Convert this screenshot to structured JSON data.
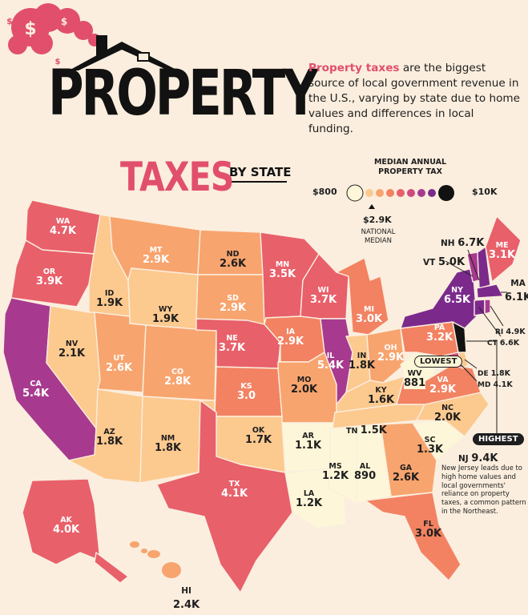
{
  "title": {
    "main": "PROPERTY",
    "sub": "TAXES",
    "by_state": "BY STATE"
  },
  "intro": {
    "highlight": "Property taxes",
    "body": " are the biggest source of local government revenue in the U.S., varying by state due to home values and differences in local funding."
  },
  "legend": {
    "title": "MEDIAN ANNUAL PROPERTY TAX",
    "min_label": "$800",
    "max_label": "$10K",
    "median_value": "$2.9K",
    "median_label": "NATIONAL MEDIAN",
    "colors": [
      "#fdf6d8",
      "#fcc98f",
      "#f8a46e",
      "#f28262",
      "#e8606a",
      "#cf4a7e",
      "#a73a8f",
      "#7b2a8c",
      "#121212"
    ]
  },
  "states": {
    "WA": "4.7K",
    "OR": "3.9K",
    "CA": "5.4K",
    "ID": "1.9K",
    "NV": "2.1K",
    "MT": "2.9K",
    "WY": "1.9K",
    "UT": "2.6K",
    "CO": "2.8K",
    "AZ": "1.8K",
    "NM": "1.8K",
    "ND": "2.6K",
    "SD": "2.9K",
    "NE": "3.7K",
    "KS": "3.0",
    "OK": "1.7K",
    "TX": "4.1K",
    "MN": "3.5K",
    "IA": "2.9K",
    "MO": "2.0K",
    "AR": "1.1K",
    "LA": "1.2K",
    "WI": "3.7K",
    "IL": "5.4K",
    "MI": "3.0K",
    "IN": "1.8K",
    "OH": "2.9K",
    "KY": "1.6K",
    "TN": "1.5K",
    "MS": "1.2K",
    "AL": "890",
    "GA": "2.6K",
    "FL": "3.0K",
    "SC": "1.3K",
    "NC": "2.0K",
    "VA": "2.9K",
    "WV": "881",
    "PA": "3.2K",
    "NY": "6.5K",
    "ME": "3.1K",
    "MA": "6.1K",
    "AK": "4.0K",
    "HI": "2.4K",
    "NH": "6.7K",
    "VT": "5.0K",
    "RI": "4.9K",
    "CT": "6.6K",
    "DE": "1.8K",
    "MD": "4.1K",
    "NJ": "9.4K"
  },
  "badges": {
    "lowest": "LOWEST",
    "highest": "HIGHEST"
  },
  "nj_note": "New Jersey leads due to high home values and local governments' reliance on property taxes, a common pattern in the Northeast.",
  "palette": {
    "background": "#fbeede",
    "accent": "#e14f6c",
    "ink": "#121212"
  }
}
